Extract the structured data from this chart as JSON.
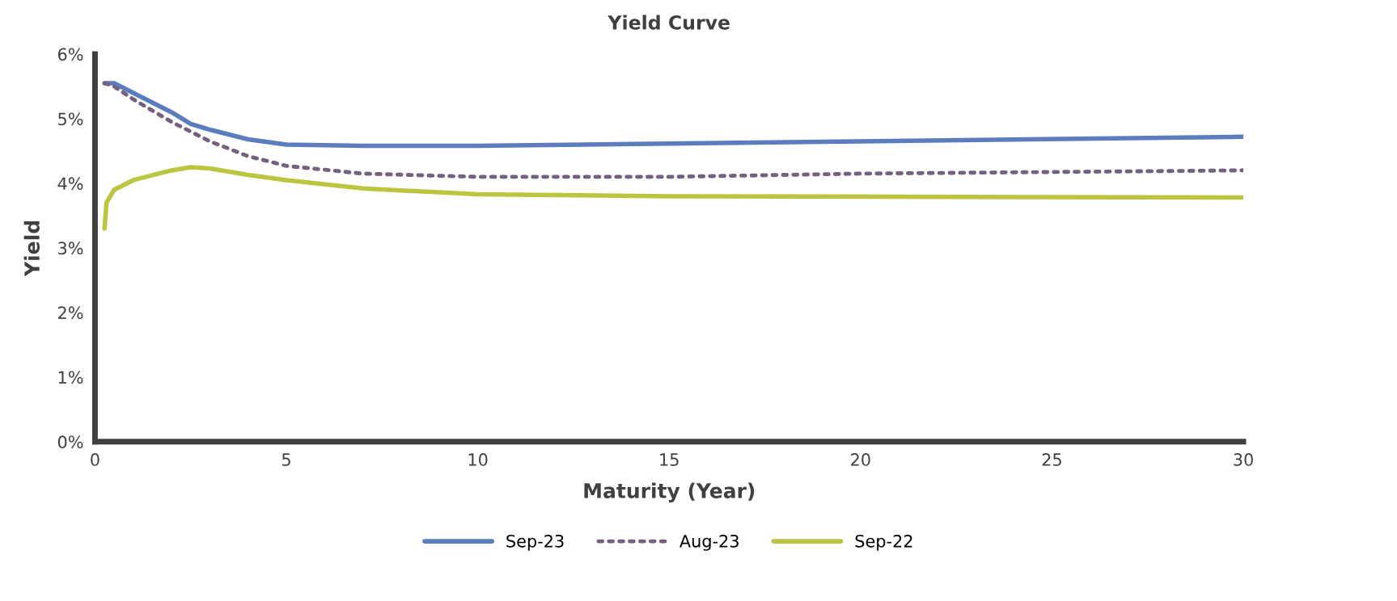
{
  "chart_data": {
    "type": "line",
    "title": "Yield Curve",
    "xlabel": "Maturity (Year)",
    "ylabel": "Yield",
    "xlim": [
      0,
      30
    ],
    "xticks": [
      0,
      5,
      10,
      15,
      20,
      25,
      30
    ],
    "ylim": [
      0,
      6
    ],
    "yticks": [
      {
        "value": 0,
        "label": "0%"
      },
      {
        "value": 1,
        "label": "1%"
      },
      {
        "value": 2,
        "label": "2%"
      },
      {
        "value": 3,
        "label": "3%"
      },
      {
        "value": 4,
        "label": "4%"
      },
      {
        "value": 5,
        "label": "5%"
      },
      {
        "value": 6,
        "label": "6%"
      }
    ],
    "grid": false,
    "legend": "bottom",
    "marker": "none",
    "series": [
      {
        "name": "Sep-23",
        "color": "#5b7dbd",
        "line_style": "solid",
        "x": [
          0.25,
          0.5,
          1,
          2,
          2.5,
          3,
          4,
          5,
          7,
          10,
          20,
          30
        ],
        "values": [
          5.55,
          5.55,
          5.4,
          5.1,
          4.92,
          4.83,
          4.68,
          4.6,
          4.58,
          4.58,
          4.65,
          4.72
        ]
      },
      {
        "name": "Aug-23",
        "color": "#75617f",
        "line_style": "dotted",
        "x": [
          0.25,
          0.5,
          1,
          2,
          3,
          4,
          5,
          7,
          10,
          15,
          20,
          30
        ],
        "values": [
          5.55,
          5.5,
          5.3,
          4.95,
          4.65,
          4.42,
          4.27,
          4.15,
          4.1,
          4.1,
          4.15,
          4.2
        ]
      },
      {
        "name": "Sep-22",
        "color": "#bcc53f",
        "line_style": "solid",
        "x": [
          0.25,
          0.3,
          0.5,
          1,
          2,
          2.5,
          3,
          4,
          5,
          7,
          10,
          15,
          30
        ],
        "values": [
          3.3,
          3.7,
          3.9,
          4.05,
          4.2,
          4.25,
          4.23,
          4.13,
          4.05,
          3.92,
          3.83,
          3.8,
          3.78
        ]
      }
    ]
  }
}
